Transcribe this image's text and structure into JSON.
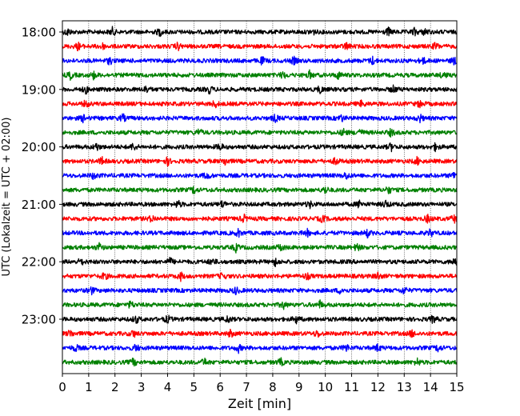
{
  "chart_data": {
    "type": "line",
    "title": "",
    "xlabel": "Zeit  [min]",
    "ylabel": "UTC (Lokalzeit = UTC + 02:00)",
    "xlim": [
      0,
      15
    ],
    "x_ticks": [
      "0",
      "1",
      "2",
      "3",
      "4",
      "5",
      "6",
      "7",
      "8",
      "9",
      "10",
      "11",
      "12",
      "13",
      "14",
      "15"
    ],
    "y_tick_labels": [
      "18:00",
      "19:00",
      "20:00",
      "21:00",
      "22:00",
      "23:00"
    ],
    "grid": "vertical dotted at each minute",
    "trace_interval_min": 15,
    "trace_colors": [
      "#000000",
      "#ff0000",
      "#0000ff",
      "#008000"
    ],
    "traces": [
      {
        "start": "18:00",
        "color": "#000000",
        "events_min": [
          0.2,
          1.9,
          3.7,
          9.5,
          12.4,
          13.4,
          13.8
        ]
      },
      {
        "start": "18:15",
        "color": "#ff0000",
        "events_min": [
          0.6,
          1.5,
          4.4,
          10.8,
          14.2
        ]
      },
      {
        "start": "18:30",
        "color": "#0000ff",
        "events_min": [
          1.8,
          7.6,
          8.8,
          11.8,
          13.7,
          14.9
        ]
      },
      {
        "start": "18:45",
        "color": "#008000",
        "events_min": [
          0.3,
          1.2,
          8.4,
          9.4,
          10.5,
          14.5
        ]
      },
      {
        "start": "19:00",
        "color": "#000000",
        "events_min": [
          0.9,
          3.2,
          5.6,
          9.8,
          12.6
        ]
      },
      {
        "start": "19:15",
        "color": "#ff0000",
        "events_min": [
          0.9,
          5.8,
          11.4,
          13.6
        ]
      },
      {
        "start": "19:30",
        "color": "#0000ff",
        "events_min": [
          0.8,
          2.3,
          8.1,
          10.6,
          13.6
        ]
      },
      {
        "start": "19:45",
        "color": "#008000",
        "events_min": [
          5.2,
          10.7,
          11.3,
          12.5
        ]
      },
      {
        "start": "20:00",
        "color": "#000000",
        "events_min": [
          1.3,
          2.7,
          6.0,
          12.5,
          14.2
        ]
      },
      {
        "start": "20:15",
        "color": "#ff0000",
        "events_min": [
          1.5,
          4.0,
          6.2,
          10.4,
          13.5
        ]
      },
      {
        "start": "20:30",
        "color": "#0000ff",
        "events_min": [
          1.2,
          5.5,
          10.8,
          14.9
        ]
      },
      {
        "start": "20:45",
        "color": "#008000",
        "events_min": [
          5.0,
          10.0,
          12.4
        ]
      },
      {
        "start": "21:00",
        "color": "#000000",
        "events_min": [
          4.4,
          6.1,
          9.4,
          11.3,
          12.3
        ]
      },
      {
        "start": "21:15",
        "color": "#ff0000",
        "events_min": [
          3.4,
          6.9,
          9.9,
          13.9,
          14.9
        ]
      },
      {
        "start": "21:30",
        "color": "#0000ff",
        "events_min": [
          6.7,
          9.3,
          11.6,
          14.0
        ]
      },
      {
        "start": "21:45",
        "color": "#008000",
        "events_min": [
          1.4,
          6.6,
          8.3,
          11.2
        ]
      },
      {
        "start": "22:00",
        "color": "#000000",
        "events_min": [
          0.7,
          4.1,
          5.7,
          8.1,
          14.9
        ]
      },
      {
        "start": "22:15",
        "color": "#ff0000",
        "events_min": [
          1.6,
          4.5,
          6.1,
          9.3,
          12.0
        ]
      },
      {
        "start": "22:30",
        "color": "#0000ff",
        "events_min": [
          1.1,
          6.6,
          10.6,
          13.0
        ]
      },
      {
        "start": "22:45",
        "color": "#008000",
        "events_min": [
          2.6,
          8.4,
          9.8
        ]
      },
      {
        "start": "23:00",
        "color": "#000000",
        "events_min": [
          2.8,
          4.0,
          6.3,
          8.9,
          14.1
        ]
      },
      {
        "start": "23:15",
        "color": "#ff0000",
        "events_min": [
          0.3,
          2.7,
          6.4,
          9.7,
          13.3
        ]
      },
      {
        "start": "23:30",
        "color": "#0000ff",
        "events_min": [
          0.5,
          2.8,
          6.7,
          10.8,
          12.0,
          14.3
        ]
      },
      {
        "start": "23:45",
        "color": "#008000",
        "events_min": [
          2.7,
          5.4,
          8.3,
          13.5
        ]
      }
    ]
  }
}
